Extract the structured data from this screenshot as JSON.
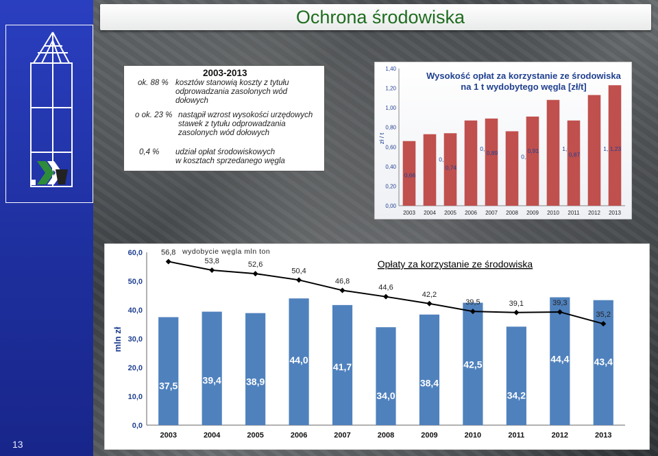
{
  "title": "Ochrona środowiska",
  "page_number": "13",
  "info_box": {
    "header": "2003-2013",
    "row1_value": "ok. 88 %",
    "row1_text": [
      "kosztów stanowią koszty z tytułu",
      "odprowadzania zasolonych wód",
      "dołowych"
    ],
    "row2_value": "o ok. 23 %",
    "row2_text": [
      "nastąpił wzrost wysokości urzędowych",
      "stawek z tytułu odprowadzania",
      "zasolonych wód dołowych"
    ],
    "row3_value": "0,4 %",
    "row3_text": [
      "udział opłat środowiskowych",
      "w kosztach  sprzedanego węgla"
    ]
  },
  "colors": {
    "left_bar": "#1e2f9e",
    "title_text": "#1f6d1f",
    "bar_red": "#c0504d",
    "bar_blue": "#4f81bd",
    "line_black": "#000000"
  },
  "chart_data": [
    {
      "type": "bar",
      "title": [
        "Wysokość opłat za korzystanie ze środowiska",
        "na 1 t wydobytego węgla [zł/t]"
      ],
      "ylabel": "zł / t",
      "ylim": [
        0,
        1.4
      ],
      "yticks": [
        "0,00",
        "0,20",
        "0,40",
        "0,60",
        "0,80",
        "1,00",
        "1,20",
        "1,40"
      ],
      "categories": [
        "2003",
        "2004",
        "2005",
        "2006",
        "2007",
        "2008",
        "2009",
        "2010",
        "2011",
        "2012",
        "2013"
      ],
      "values": [
        0.66,
        0.73,
        0.74,
        0.87,
        0.89,
        0.76,
        0.91,
        1.08,
        0.87,
        1.13,
        1.23
      ],
      "value_labels": [
        "0,66",
        "0,73",
        "0,74",
        "0,87",
        "0,89",
        "0,76",
        "0,91",
        "1,08",
        "0,87",
        "1,13",
        "1,23"
      ],
      "grid": false
    },
    {
      "type": "bar",
      "title": "Opłaty za korzystanie ze środowiska",
      "ylabel": "mln zł",
      "ylim": [
        0,
        60
      ],
      "yticks": [
        "0,0",
        "10,0",
        "20,0",
        "30,0",
        "40,0",
        "50,0",
        "60,0"
      ],
      "categories": [
        "2003",
        "2004",
        "2005",
        "2006",
        "2007",
        "2008",
        "2009",
        "2010",
        "2011",
        "2012",
        "2013"
      ],
      "series": [
        {
          "values": [
            37.5,
            39.4,
            38.9,
            44.0,
            41.7,
            34.0,
            38.4,
            42.5,
            34.2,
            44.4,
            43.4
          ],
          "labels": [
            "37,5",
            "39,4",
            "38,9",
            "44,0",
            "41,7",
            "34,0",
            "38,4",
            "42,5",
            "34,2",
            "44,4",
            "43,4"
          ]
        },
        {
          "name": "wydobycie węgla mln ton",
          "type": "line",
          "values": [
            56.8,
            53.8,
            52.6,
            50.4,
            46.8,
            44.6,
            42.2,
            39.5,
            39.1,
            39.3,
            35.2
          ],
          "labels": [
            "56,8",
            "53,8",
            "52,6",
            "50,4",
            "46,8",
            "44,6",
            "42,2",
            "39,5",
            "39,1",
            "39,3",
            "35,2"
          ]
        }
      ],
      "grid": false
    }
  ]
}
